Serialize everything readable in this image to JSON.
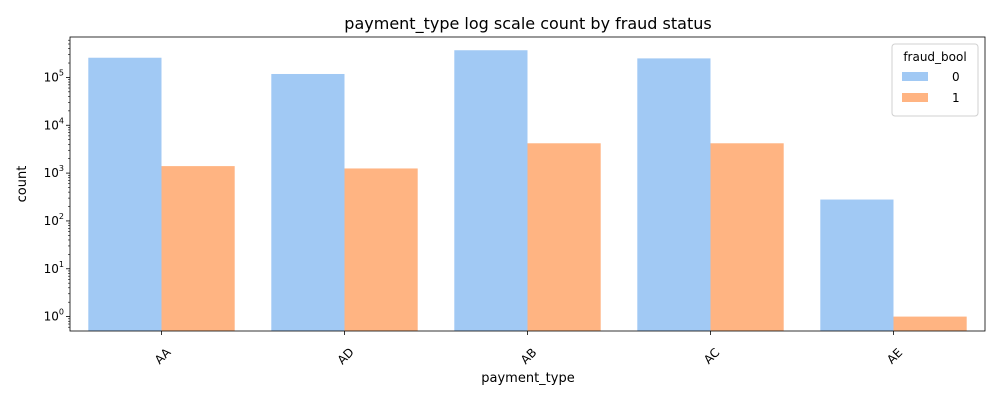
{
  "chart_data": {
    "type": "bar",
    "title": "payment_type log scale count by fraud status",
    "xlabel": "payment_type",
    "ylabel": "count",
    "yscale": "log",
    "ylim": [
      0.5,
      700000
    ],
    "categories": [
      "AA",
      "AD",
      "AB",
      "AC",
      "AE"
    ],
    "series": [
      {
        "name": "0",
        "color": "#a1c9f4",
        "values": [
          258000,
          118000,
          370000,
          250000,
          280
        ]
      },
      {
        "name": "1",
        "color": "#ffb482",
        "values": [
          1400,
          1250,
          4200,
          4200,
          1
        ]
      }
    ],
    "yticks": [
      {
        "value": 1,
        "base": "10",
        "exp": "0"
      },
      {
        "value": 10,
        "base": "10",
        "exp": "1"
      },
      {
        "value": 100,
        "base": "10",
        "exp": "2"
      },
      {
        "value": 1000,
        "base": "10",
        "exp": "3"
      },
      {
        "value": 10000,
        "base": "10",
        "exp": "4"
      },
      {
        "value": 100000,
        "base": "10",
        "exp": "5"
      }
    ],
    "legend": {
      "title": "fraud_bool",
      "placement": "top-right"
    },
    "grid": false
  }
}
